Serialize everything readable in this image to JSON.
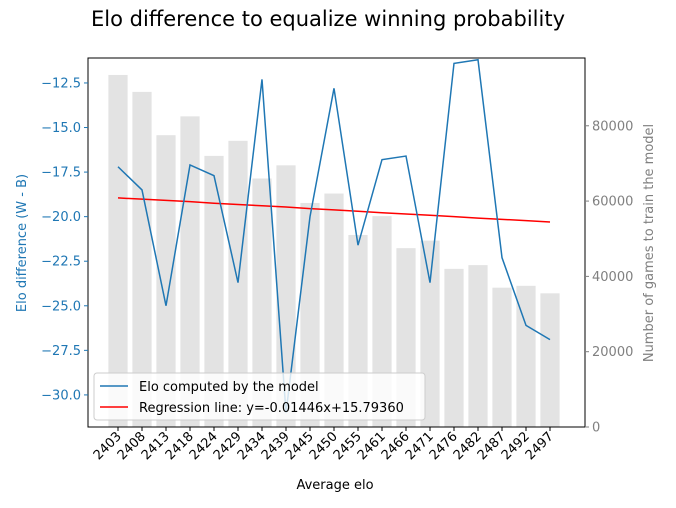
{
  "chart_data": {
    "type": "bar+line",
    "title": "Elo difference to equalize winning probability",
    "xlabel": "Average elo",
    "ylabel_left": "Elo difference (W - B)",
    "ylabel_right": "Number of games to train the model",
    "categories": [
      "2403",
      "2408",
      "2413",
      "2418",
      "2424",
      "2429",
      "2434",
      "2439",
      "2445",
      "2450",
      "2455",
      "2461",
      "2466",
      "2471",
      "2476",
      "2482",
      "2487",
      "2492",
      "2497"
    ],
    "left_axis": {
      "ylim": [
        -31.8,
        -11.1
      ],
      "ticks": [
        -12.5,
        -15.0,
        -17.5,
        -20.0,
        -22.5,
        -25.0,
        -27.5,
        -30.0
      ],
      "tick_labels": [
        "−12.5",
        "−15.0",
        "−17.5",
        "−20.0",
        "−22.5",
        "−25.0",
        "−27.5",
        "−30.0"
      ],
      "color": "#1f77b4"
    },
    "right_axis": {
      "ylim": [
        0,
        98000
      ],
      "ticks": [
        0,
        20000,
        40000,
        60000,
        80000
      ],
      "tick_labels": [
        "0",
        "20000",
        "40000",
        "60000",
        "80000"
      ],
      "color": "#808080"
    },
    "series": [
      {
        "name": "Elo computed by the model",
        "kind": "line",
        "axis": "left",
        "color": "#1f77b4",
        "values": [
          -17.2,
          -18.5,
          -25.0,
          -17.1,
          -17.7,
          -23.7,
          -12.3,
          -31.0,
          -20.0,
          -12.8,
          -21.6,
          -16.8,
          -16.6,
          -23.7,
          -11.4,
          -11.2,
          -22.3,
          -26.1,
          -26.9
        ]
      },
      {
        "name": "Regression line: y=-0.01446x+15.79360",
        "kind": "line",
        "axis": "left",
        "color": "#ff0000",
        "values": [
          -18.95,
          -19.02,
          -19.09,
          -19.16,
          -19.25,
          -19.32,
          -19.39,
          -19.46,
          -19.55,
          -19.62,
          -19.7,
          -19.78,
          -19.85,
          -19.92,
          -20.0,
          -20.08,
          -20.15,
          -20.22,
          -20.3
        ]
      },
      {
        "name": "Number of games",
        "kind": "bar",
        "axis": "right",
        "color": "#e3e3e3",
        "values": [
          93500,
          89000,
          77500,
          82500,
          72000,
          76000,
          66000,
          69500,
          59500,
          62000,
          51000,
          56000,
          47500,
          49500,
          42000,
          43000,
          37000,
          37500,
          35500
        ]
      }
    ],
    "legend": {
      "position": "lower-left"
    }
  }
}
